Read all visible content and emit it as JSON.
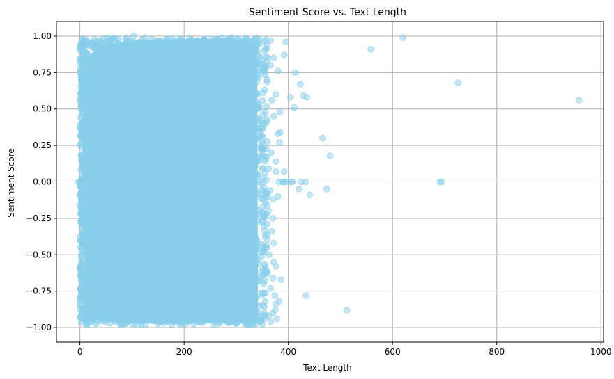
{
  "chart_data": {
    "type": "scatter",
    "title": "Sentiment Score vs. Text Length",
    "xlabel": "Text Length",
    "ylabel": "Sentiment Score",
    "xlim": [
      -45,
      1005
    ],
    "ylim": [
      -1.1,
      1.1
    ],
    "x_ticks": [
      0,
      200,
      400,
      600,
      800,
      1000
    ],
    "y_ticks": [
      -1.0,
      -0.75,
      -0.5,
      -0.25,
      0.0,
      0.25,
      0.5,
      0.75,
      1.0
    ],
    "x_tick_labels": [
      "0",
      "200",
      "400",
      "600",
      "800",
      "1000"
    ],
    "y_tick_labels": [
      "−1.00",
      "−0.75",
      "−0.50",
      "−0.25",
      "0.00",
      "0.25",
      "0.50",
      "0.75",
      "1.00"
    ],
    "grid": true,
    "marker_color": "#87CEEB",
    "marker_alpha": 0.5,
    "dense_region": {
      "x_range": [
        0,
        350
      ],
      "y_range": [
        -0.98,
        0.99
      ],
      "description_points": 20000
    },
    "points": [
      [
        -3,
        0.0
      ],
      [
        3,
        0.58
      ],
      [
        4,
        0.38
      ],
      [
        2,
        -0.58
      ],
      [
        5,
        0.84
      ],
      [
        103,
        1.0
      ],
      [
        345,
        0.0
      ],
      [
        345,
        0.95
      ],
      [
        358,
        0.91
      ],
      [
        366,
        0.97
      ],
      [
        372,
        0.85
      ],
      [
        366,
        0.8
      ],
      [
        380,
        0.76
      ],
      [
        392,
        0.87
      ],
      [
        395,
        0.96
      ],
      [
        376,
        0.6
      ],
      [
        384,
        0.48
      ],
      [
        384,
        0.34
      ],
      [
        380,
        0.33
      ],
      [
        383,
        0.27
      ],
      [
        372,
        0.45
      ],
      [
        368,
        0.56
      ],
      [
        413,
        0.75
      ],
      [
        423,
        0.67
      ],
      [
        429,
        0.59
      ],
      [
        436,
        0.58
      ],
      [
        404,
        0.58
      ],
      [
        411,
        0.51
      ],
      [
        367,
        0.2
      ],
      [
        376,
        0.14
      ],
      [
        362,
        0.09
      ],
      [
        376,
        0.07
      ],
      [
        392,
        0.07
      ],
      [
        382,
        0.0
      ],
      [
        389,
        0.0
      ],
      [
        392,
        0.0
      ],
      [
        395,
        0.0
      ],
      [
        405,
        0.0
      ],
      [
        408,
        0.0
      ],
      [
        425,
        0.0
      ],
      [
        433,
        0.0
      ],
      [
        420,
        -0.05
      ],
      [
        441,
        -0.09
      ],
      [
        365,
        -0.06
      ],
      [
        360,
        -0.1
      ],
      [
        371,
        -0.12
      ],
      [
        380,
        -0.1
      ],
      [
        362,
        -0.2
      ],
      [
        370,
        -0.25
      ],
      [
        368,
        -0.34
      ],
      [
        372,
        -0.42
      ],
      [
        466,
        0.3
      ],
      [
        480,
        0.18
      ],
      [
        474,
        -0.05
      ],
      [
        558,
        0.91
      ],
      [
        620,
        0.99
      ],
      [
        726,
        0.68
      ],
      [
        958,
        0.56
      ],
      [
        691,
        0.0
      ],
      [
        694,
        0.0
      ],
      [
        363,
        -0.5
      ],
      [
        372,
        -0.55
      ],
      [
        376,
        -0.58
      ],
      [
        360,
        -0.62
      ],
      [
        370,
        -0.66
      ],
      [
        386,
        -0.67
      ],
      [
        366,
        -0.73
      ],
      [
        374,
        -0.78
      ],
      [
        376,
        -0.84
      ],
      [
        375,
        -0.88
      ],
      [
        382,
        -0.82
      ],
      [
        370,
        -0.9
      ],
      [
        362,
        -0.92
      ],
      [
        378,
        -0.94
      ],
      [
        366,
        -0.96
      ],
      [
        434,
        -0.78
      ],
      [
        512,
        -0.88
      ]
    ]
  }
}
